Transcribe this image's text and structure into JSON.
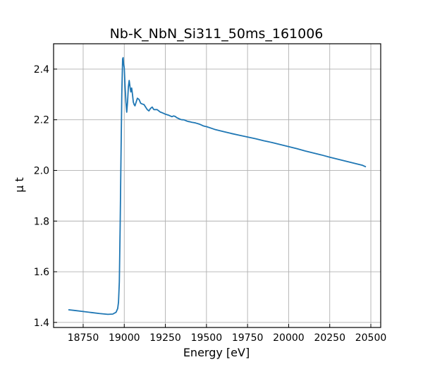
{
  "chart_data": {
    "type": "line",
    "title": "Nb-K_NbN_Si311_50ms_161006",
    "xlabel": "Energy [eV]",
    "ylabel": "μ t",
    "xlim": [
      18570,
      20560
    ],
    "ylim": [
      1.38,
      2.5
    ],
    "x_ticks": [
      18750,
      19000,
      19250,
      19500,
      19750,
      20000,
      20250,
      20500
    ],
    "x_tick_labels": [
      "18750",
      "19000",
      "19250",
      "19500",
      "19750",
      "20000",
      "20250",
      "20500"
    ],
    "y_ticks": [
      1.4,
      1.6,
      1.8,
      2.0,
      2.2,
      2.4
    ],
    "y_tick_labels": [
      "1.4",
      "1.6",
      "1.8",
      "2.0",
      "2.2",
      "2.4"
    ],
    "grid": true,
    "legend": "none",
    "line_color": "#1f77b4",
    "series": [
      {
        "x": [
          18660,
          18700,
          18750,
          18800,
          18850,
          18900,
          18930,
          18950,
          18960,
          18965,
          18970,
          18975,
          18980,
          18985,
          18990,
          18993,
          18996,
          19000,
          19005,
          19010,
          19015,
          19020,
          19025,
          19030,
          19035,
          19040,
          19045,
          19050,
          19055,
          19060,
          19065,
          19070,
          19075,
          19080,
          19090,
          19100,
          19110,
          19120,
          19130,
          19140,
          19150,
          19160,
          19170,
          19180,
          19190,
          19200,
          19210,
          19220,
          19230,
          19240,
          19250,
          19260,
          19270,
          19280,
          19290,
          19300,
          19310,
          19320,
          19330,
          19340,
          19350,
          19360,
          19370,
          19380,
          19390,
          19400,
          19410,
          19420,
          19430,
          19440,
          19450,
          19460,
          19470,
          19480,
          19490,
          19500,
          19550,
          19600,
          19650,
          19700,
          19750,
          19800,
          19850,
          19900,
          19950,
          20000,
          20050,
          20100,
          20150,
          20200,
          20250,
          20300,
          20350,
          20400,
          20450,
          20470
        ],
        "y": [
          1.45,
          1.447,
          1.443,
          1.439,
          1.435,
          1.432,
          1.433,
          1.44,
          1.455,
          1.48,
          1.56,
          1.78,
          2.05,
          2.3,
          2.44,
          2.445,
          2.42,
          2.405,
          2.33,
          2.27,
          2.23,
          2.27,
          2.33,
          2.355,
          2.33,
          2.31,
          2.325,
          2.3,
          2.27,
          2.26,
          2.255,
          2.265,
          2.275,
          2.285,
          2.28,
          2.265,
          2.262,
          2.26,
          2.25,
          2.24,
          2.235,
          2.245,
          2.25,
          2.24,
          2.24,
          2.24,
          2.235,
          2.23,
          2.228,
          2.225,
          2.222,
          2.22,
          2.218,
          2.215,
          2.212,
          2.215,
          2.213,
          2.208,
          2.205,
          2.202,
          2.2,
          2.2,
          2.198,
          2.195,
          2.193,
          2.192,
          2.19,
          2.189,
          2.188,
          2.186,
          2.184,
          2.182,
          2.179,
          2.176,
          2.174,
          2.173,
          2.162,
          2.154,
          2.146,
          2.139,
          2.132,
          2.125,
          2.117,
          2.11,
          2.102,
          2.094,
          2.086,
          2.077,
          2.069,
          2.061,
          2.052,
          2.044,
          2.036,
          2.028,
          2.02,
          2.014
        ]
      }
    ]
  }
}
